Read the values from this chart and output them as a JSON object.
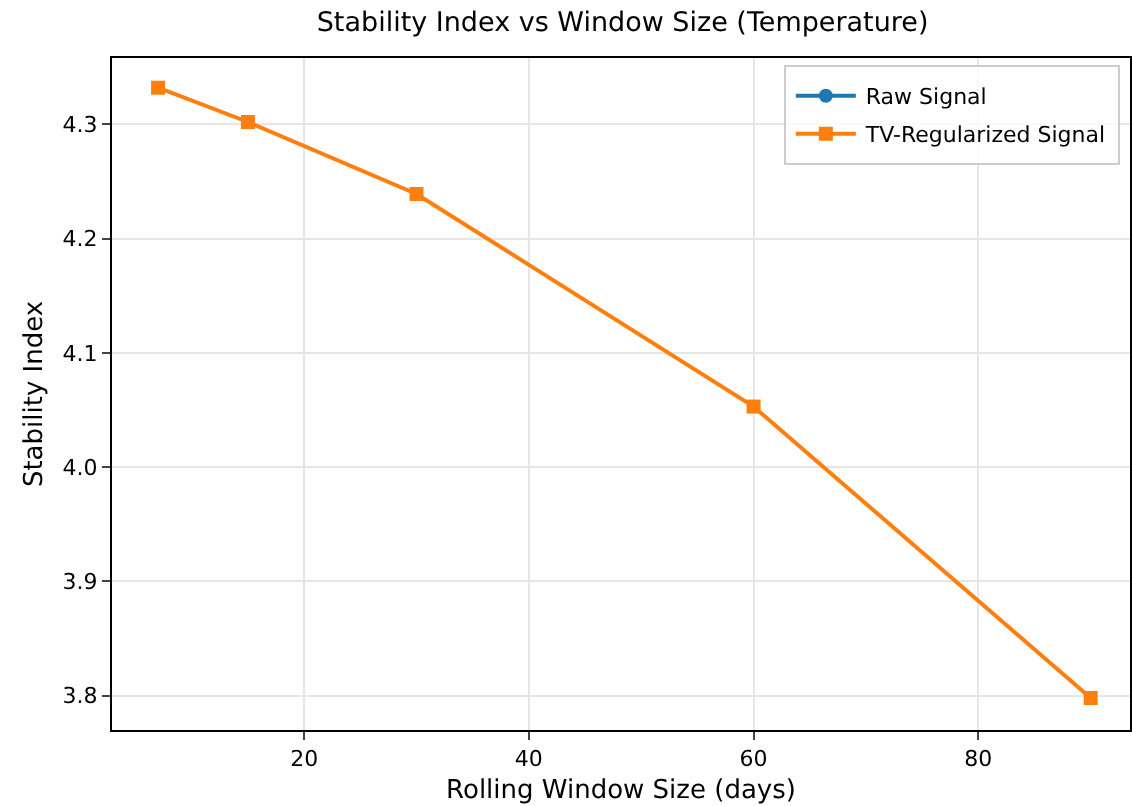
{
  "chart_data": {
    "type": "line",
    "title": "Stability Index vs Window Size (Temperature)",
    "xlabel": "Rolling Window Size (days)",
    "ylabel": "Stability Index",
    "x": [
      7,
      15,
      30,
      60,
      90
    ],
    "series": [
      {
        "name": "Raw Signal",
        "color": "#1f77b4",
        "marker": "circle",
        "values": [
          null,
          null,
          null,
          null,
          null
        ]
      },
      {
        "name": "TV-Regularized Signal",
        "color": "#ff7f0e",
        "marker": "square",
        "values": [
          4.332,
          4.302,
          4.239,
          4.053,
          3.798
        ]
      }
    ],
    "xlim": [
      2.9,
      93.5
    ],
    "xticks": [
      20,
      40,
      60,
      80
    ],
    "ylim": [
      3.77,
      4.358
    ],
    "yticks": [
      3.8,
      3.9,
      {
        "value": 4,
        "label": "4.0"
      },
      4.1,
      4.2,
      4.3
    ],
    "grid": true,
    "legend": "top right",
    "line_style": "solid"
  }
}
